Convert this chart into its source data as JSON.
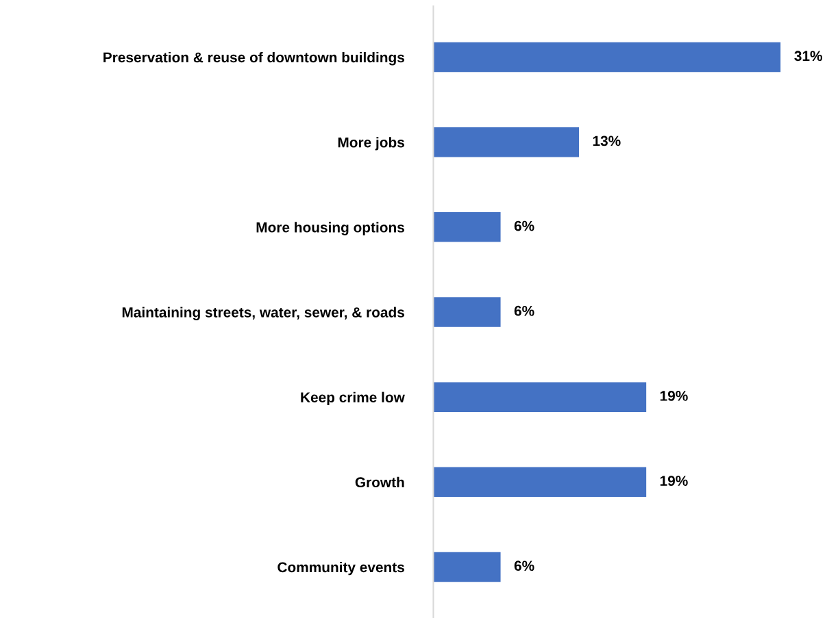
{
  "chart_data": {
    "type": "bar",
    "orientation": "horizontal",
    "categories": [
      "Preservation & reuse of downtown buildings",
      "More jobs",
      "More housing options",
      "Maintaining streets, water, sewer, & roads",
      "Keep crime low",
      "Growth",
      "Community events"
    ],
    "values": [
      31,
      13,
      6,
      6,
      19,
      19,
      6
    ],
    "value_labels": [
      "31%",
      "13%",
      "6%",
      "6%",
      "19%",
      "19%",
      "6%"
    ],
    "color": "#4472c4",
    "tick_labels": "y",
    "grid": false,
    "legend": false
  }
}
